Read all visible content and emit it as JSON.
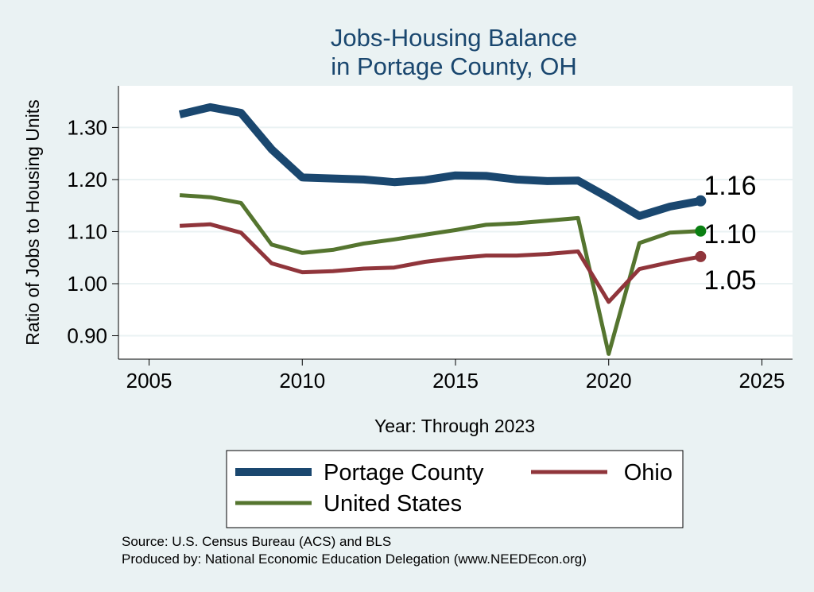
{
  "chart_data": {
    "type": "line",
    "title": [
      "Jobs-Housing Balance",
      "in Portage County, OH"
    ],
    "xlabel": "Year: Through 2023",
    "ylabel": "Ratio of Jobs to Housing Units",
    "xlim": [
      2004,
      2026
    ],
    "ylim": [
      0.855,
      1.38
    ],
    "xticks": [
      2005,
      2010,
      2015,
      2020,
      2025
    ],
    "yticks": [
      0.9,
      1.0,
      1.1,
      1.2,
      1.3
    ],
    "ytick_labels": [
      "0.90",
      "1.00",
      "1.10",
      "1.20",
      "1.30"
    ],
    "grid": true,
    "x": [
      2006,
      2007,
      2008,
      2009,
      2010,
      2011,
      2012,
      2013,
      2014,
      2015,
      2016,
      2017,
      2018,
      2019,
      2020,
      2021,
      2022,
      2023
    ],
    "series": [
      {
        "name": "Portage County",
        "color": "#1a476f",
        "values": [
          1.325,
          1.339,
          1.328,
          1.258,
          1.204,
          1.202,
          1.2,
          1.195,
          1.199,
          1.208,
          1.207,
          1.2,
          1.197,
          1.198,
          1.165,
          1.13,
          1.148,
          1.159
        ],
        "end_label": "1.16"
      },
      {
        "name": "United States",
        "color": "#55752f",
        "values": [
          1.17,
          1.166,
          1.155,
          1.075,
          1.059,
          1.065,
          1.077,
          1.085,
          1.094,
          1.103,
          1.113,
          1.116,
          1.121,
          1.126,
          0.865,
          1.078,
          1.098,
          1.101
        ],
        "end_label": "1.10",
        "marker_color": "#0a7f12"
      },
      {
        "name": "Ohio",
        "color": "#90353b",
        "values": [
          1.111,
          1.114,
          1.098,
          1.039,
          1.022,
          1.024,
          1.029,
          1.031,
          1.042,
          1.049,
          1.054,
          1.054,
          1.057,
          1.062,
          0.965,
          1.028,
          1.041,
          1.052
        ],
        "end_label": "1.05"
      }
    ],
    "legend": [
      "Portage County",
      "Ohio",
      "United States"
    ],
    "legend_position": "bottom"
  },
  "source_lines": [
    "Source: U.S. Census Bureau (ACS) and BLS",
    "Produced by: National Economic Education Delegation (www.NEEDEcon.org)"
  ]
}
